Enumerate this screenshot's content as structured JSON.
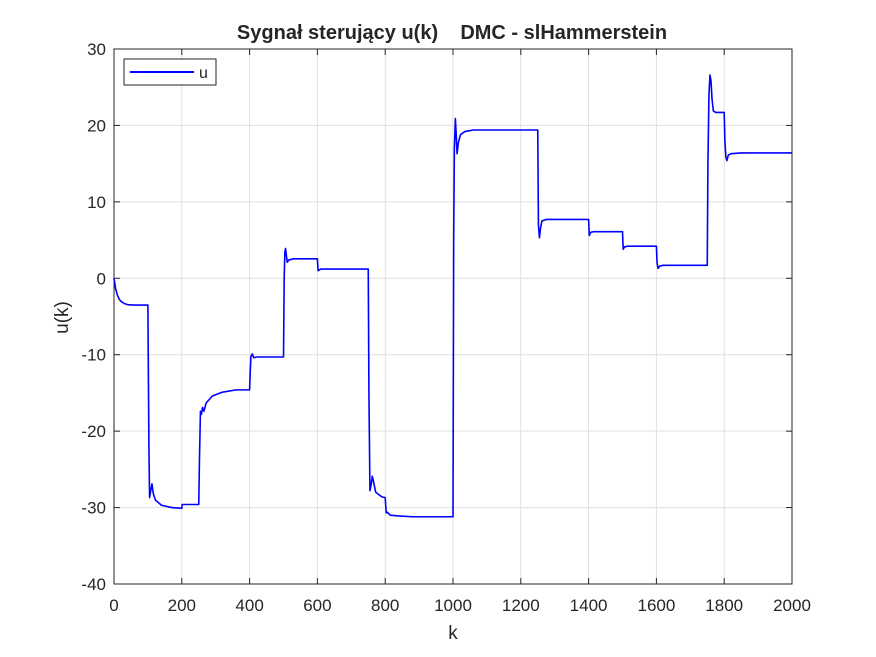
{
  "chart_data": {
    "type": "line",
    "title": "Sygnał sterujący u(k)    DMC - slHammerstein",
    "xlabel": "k",
    "ylabel": "u(k)",
    "xlim": [
      0,
      2000
    ],
    "ylim": [
      -40,
      30
    ],
    "xticks": [
      0,
      200,
      400,
      600,
      800,
      1000,
      1200,
      1400,
      1600,
      1800,
      2000
    ],
    "yticks": [
      -40,
      -30,
      -20,
      -10,
      0,
      10,
      20,
      30
    ],
    "xtick_labels": [
      "0",
      "200",
      "400",
      "600",
      "800",
      "1000",
      "1200",
      "1400",
      "1600",
      "1800",
      "2000"
    ],
    "ytick_labels": [
      "-40",
      "-30",
      "-20",
      "-10",
      "0",
      "10",
      "20",
      "30"
    ],
    "grid": true,
    "legend_position": "top-left",
    "series": [
      {
        "name": "u",
        "color": "#0000ff",
        "points": [
          [
            0,
            0
          ],
          [
            5,
            -1.4
          ],
          [
            10,
            -2.2
          ],
          [
            15,
            -2.7
          ],
          [
            20,
            -3.0
          ],
          [
            30,
            -3.3
          ],
          [
            40,
            -3.45
          ],
          [
            60,
            -3.5
          ],
          [
            100,
            -3.5
          ],
          [
            101,
            -10
          ],
          [
            103,
            -22
          ],
          [
            105,
            -28.7
          ],
          [
            108,
            -27.9
          ],
          [
            112,
            -26.9
          ],
          [
            116,
            -28.2
          ],
          [
            122,
            -29.0
          ],
          [
            140,
            -29.7
          ],
          [
            170,
            -30.0
          ],
          [
            200,
            -30.1
          ],
          [
            201,
            -29.6
          ],
          [
            250,
            -29.6
          ],
          [
            252,
            -24
          ],
          [
            255,
            -17.4
          ],
          [
            258,
            -17.8
          ],
          [
            261,
            -16.9
          ],
          [
            265,
            -17.4
          ],
          [
            272,
            -16.3
          ],
          [
            290,
            -15.4
          ],
          [
            320,
            -14.9
          ],
          [
            360,
            -14.6
          ],
          [
            400,
            -14.6
          ],
          [
            402,
            -12
          ],
          [
            404,
            -10.2
          ],
          [
            408,
            -9.9
          ],
          [
            412,
            -10.4
          ],
          [
            420,
            -10.3
          ],
          [
            500,
            -10.3
          ],
          [
            502,
            0
          ],
          [
            504,
            3.4
          ],
          [
            506,
            3.9
          ],
          [
            508,
            3.2
          ],
          [
            511,
            2.1
          ],
          [
            516,
            2.4
          ],
          [
            530,
            2.55
          ],
          [
            600,
            2.55
          ],
          [
            602,
            1.0
          ],
          [
            610,
            1.2
          ],
          [
            750,
            1.2
          ],
          [
            752,
            -15
          ],
          [
            755,
            -27.8
          ],
          [
            759,
            -26.9
          ],
          [
            762,
            -25.9
          ],
          [
            766,
            -26.7
          ],
          [
            772,
            -28.0
          ],
          [
            790,
            -28.6
          ],
          [
            800,
            -28.7
          ],
          [
            803,
            -30.7
          ],
          [
            806,
            -30.6
          ],
          [
            815,
            -31.0
          ],
          [
            840,
            -31.1
          ],
          [
            880,
            -31.2
          ],
          [
            1000,
            -31.2
          ],
          [
            1002,
            5
          ],
          [
            1004,
            17
          ],
          [
            1007,
            20.9
          ],
          [
            1009,
            19.2
          ],
          [
            1012,
            16.3
          ],
          [
            1016,
            17.8
          ],
          [
            1022,
            18.8
          ],
          [
            1035,
            19.2
          ],
          [
            1060,
            19.4
          ],
          [
            1250,
            19.4
          ],
          [
            1252,
            7
          ],
          [
            1255,
            5.3
          ],
          [
            1258,
            6.5
          ],
          [
            1262,
            7.5
          ],
          [
            1275,
            7.7
          ],
          [
            1400,
            7.7
          ],
          [
            1402,
            5.6
          ],
          [
            1406,
            6.0
          ],
          [
            1415,
            6.1
          ],
          [
            1500,
            6.1
          ],
          [
            1502,
            3.8
          ],
          [
            1506,
            4.1
          ],
          [
            1515,
            4.2
          ],
          [
            1600,
            4.2
          ],
          [
            1602,
            2.0
          ],
          [
            1605,
            1.3
          ],
          [
            1610,
            1.6
          ],
          [
            1620,
            1.7
          ],
          [
            1750,
            1.7
          ],
          [
            1752,
            15
          ],
          [
            1755,
            24
          ],
          [
            1758,
            26.6
          ],
          [
            1761,
            25.9
          ],
          [
            1764,
            23.5
          ],
          [
            1768,
            21.9
          ],
          [
            1775,
            21.7
          ],
          [
            1800,
            21.7
          ],
          [
            1802,
            18
          ],
          [
            1805,
            15.8
          ],
          [
            1808,
            15.4
          ],
          [
            1812,
            16.1
          ],
          [
            1820,
            16.3
          ],
          [
            1850,
            16.4
          ],
          [
            2000,
            16.4
          ]
        ]
      }
    ]
  }
}
